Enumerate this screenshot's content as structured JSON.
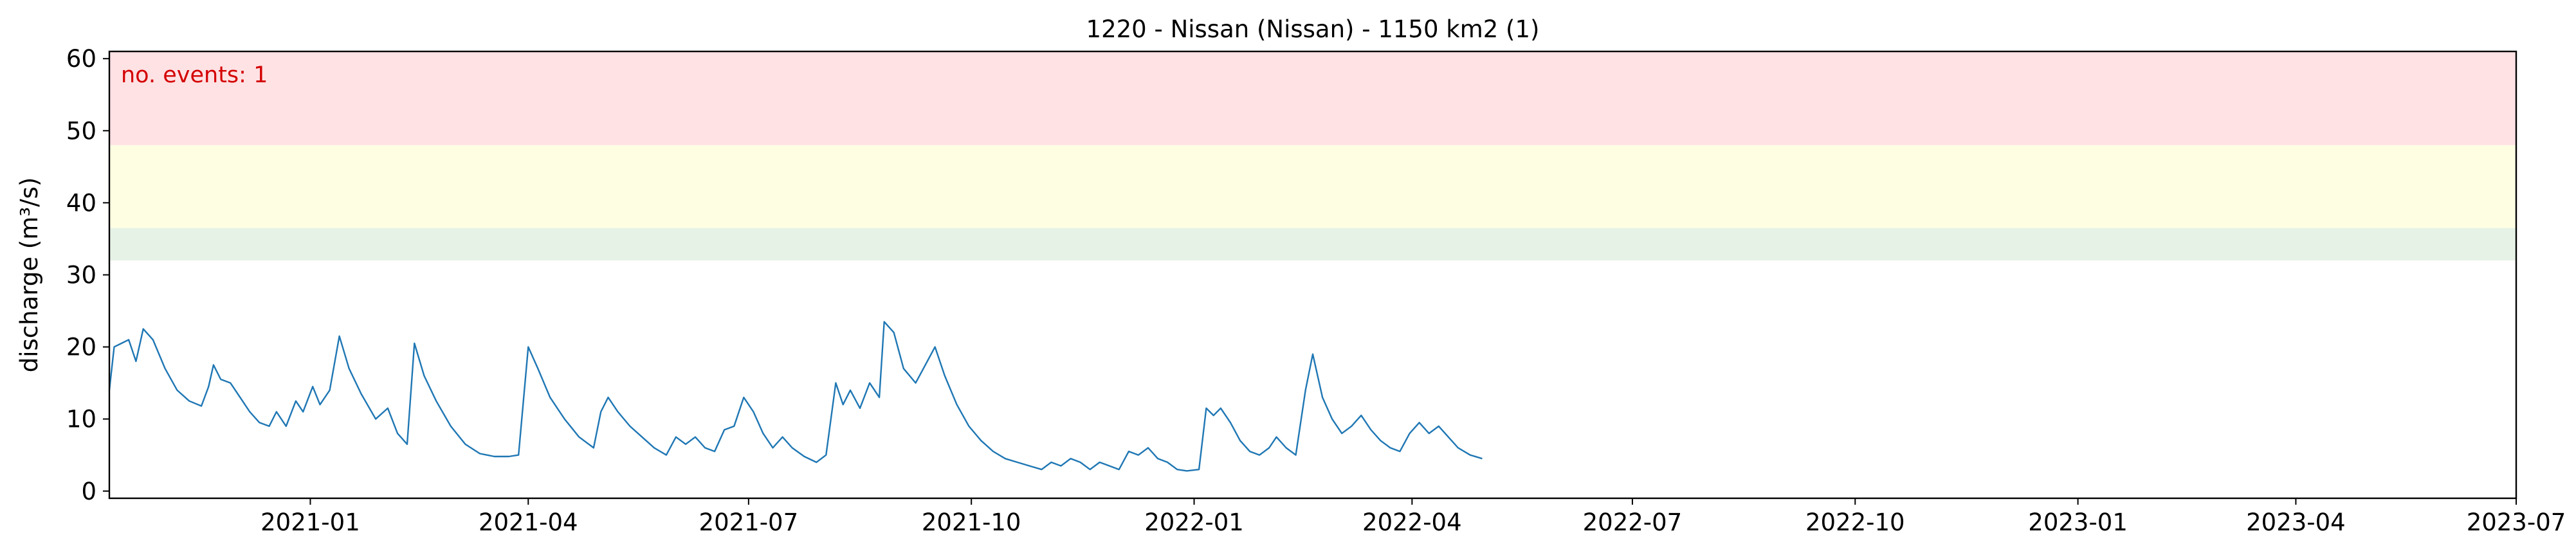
{
  "chart_data": {
    "type": "line",
    "title": "1220 - Nissan (Nissan) - 1150 km2 (1)",
    "xlabel": "",
    "ylabel": "discharge (m³/s)",
    "xlim": [
      "2020-10-10",
      "2023-07-01"
    ],
    "ylim": [
      -1,
      61
    ],
    "x_ticks": [
      "2021-01",
      "2021-04",
      "2021-07",
      "2021-10",
      "2022-01",
      "2022-04",
      "2022-07",
      "2022-10",
      "2023-01",
      "2023-04",
      "2023-07"
    ],
    "y_ticks": [
      0,
      10,
      20,
      30,
      40,
      50,
      60
    ],
    "grid": false,
    "threshold_bands": [
      {
        "lower": 32,
        "upper": 36.5,
        "color": "#e6f2e6"
      },
      {
        "lower": 36.5,
        "upper": 48,
        "color": "#fefee2"
      },
      {
        "lower": 48,
        "upper": 61,
        "color": "#ffe2e4"
      }
    ],
    "annotation": {
      "text": "no. events: 1",
      "color": "#d40000"
    },
    "series": [
      {
        "color": "#1f77b4",
        "points": [
          [
            "2020-10-10",
            14
          ],
          [
            "2020-10-12",
            20
          ],
          [
            "2020-10-15",
            20.5
          ],
          [
            "2020-10-18",
            21
          ],
          [
            "2020-10-21",
            18
          ],
          [
            "2020-10-24",
            22.5
          ],
          [
            "2020-10-28",
            21
          ],
          [
            "2020-11-02",
            17
          ],
          [
            "2020-11-07",
            14
          ],
          [
            "2020-11-12",
            12.5
          ],
          [
            "2020-11-17",
            11.8
          ],
          [
            "2020-11-20",
            14.5
          ],
          [
            "2020-11-22",
            17.5
          ],
          [
            "2020-11-25",
            15.5
          ],
          [
            "2020-11-29",
            15
          ],
          [
            "2020-12-03",
            13
          ],
          [
            "2020-12-07",
            11
          ],
          [
            "2020-12-11",
            9.5
          ],
          [
            "2020-12-15",
            9
          ],
          [
            "2020-12-18",
            11
          ],
          [
            "2020-12-22",
            9
          ],
          [
            "2020-12-26",
            12.5
          ],
          [
            "2020-12-29",
            11
          ],
          [
            "2021-01-02",
            14.5
          ],
          [
            "2021-01-05",
            12
          ],
          [
            "2021-01-09",
            14
          ],
          [
            "2021-01-13",
            21.5
          ],
          [
            "2021-01-17",
            17
          ],
          [
            "2021-01-22",
            13.5
          ],
          [
            "2021-01-28",
            10
          ],
          [
            "2021-02-02",
            11.5
          ],
          [
            "2021-02-06",
            8
          ],
          [
            "2021-02-10",
            6.5
          ],
          [
            "2021-02-13",
            20.5
          ],
          [
            "2021-02-17",
            16
          ],
          [
            "2021-02-22",
            12.5
          ],
          [
            "2021-02-28",
            9
          ],
          [
            "2021-03-06",
            6.5
          ],
          [
            "2021-03-12",
            5.2
          ],
          [
            "2021-03-18",
            4.8
          ],
          [
            "2021-03-24",
            4.8
          ],
          [
            "2021-03-28",
            5
          ],
          [
            "2021-04-01",
            20
          ],
          [
            "2021-04-05",
            17
          ],
          [
            "2021-04-10",
            13
          ],
          [
            "2021-04-16",
            10
          ],
          [
            "2021-04-22",
            7.5
          ],
          [
            "2021-04-28",
            6
          ],
          [
            "2021-05-01",
            11
          ],
          [
            "2021-05-04",
            13
          ],
          [
            "2021-05-08",
            11
          ],
          [
            "2021-05-13",
            9
          ],
          [
            "2021-05-18",
            7.5
          ],
          [
            "2021-05-23",
            6
          ],
          [
            "2021-05-28",
            5
          ],
          [
            "2021-06-01",
            7.5
          ],
          [
            "2021-06-05",
            6.5
          ],
          [
            "2021-06-09",
            7.5
          ],
          [
            "2021-06-13",
            6
          ],
          [
            "2021-06-17",
            5.5
          ],
          [
            "2021-06-21",
            8.5
          ],
          [
            "2021-06-25",
            9
          ],
          [
            "2021-06-29",
            13
          ],
          [
            "2021-07-03",
            11
          ],
          [
            "2021-07-07",
            8
          ],
          [
            "2021-07-11",
            6
          ],
          [
            "2021-07-15",
            7.5
          ],
          [
            "2021-07-19",
            6
          ],
          [
            "2021-07-24",
            4.8
          ],
          [
            "2021-07-29",
            4
          ],
          [
            "2021-08-02",
            5
          ],
          [
            "2021-08-06",
            15
          ],
          [
            "2021-08-09",
            12
          ],
          [
            "2021-08-12",
            14
          ],
          [
            "2021-08-16",
            11.5
          ],
          [
            "2021-08-20",
            15
          ],
          [
            "2021-08-24",
            13
          ],
          [
            "2021-08-26",
            23.5
          ],
          [
            "2021-08-30",
            22
          ],
          [
            "2021-09-03",
            17
          ],
          [
            "2021-09-08",
            15
          ],
          [
            "2021-09-12",
            17.5
          ],
          [
            "2021-09-16",
            20
          ],
          [
            "2021-09-20",
            16
          ],
          [
            "2021-09-25",
            12
          ],
          [
            "2021-09-30",
            9
          ],
          [
            "2021-10-05",
            7
          ],
          [
            "2021-10-10",
            5.5
          ],
          [
            "2021-10-15",
            4.5
          ],
          [
            "2021-10-20",
            4
          ],
          [
            "2021-10-25",
            3.5
          ],
          [
            "2021-10-30",
            3
          ],
          [
            "2021-11-03",
            4
          ],
          [
            "2021-11-07",
            3.5
          ],
          [
            "2021-11-11",
            4.5
          ],
          [
            "2021-11-15",
            4
          ],
          [
            "2021-11-19",
            3
          ],
          [
            "2021-11-23",
            4
          ],
          [
            "2021-11-27",
            3.5
          ],
          [
            "2021-12-01",
            3
          ],
          [
            "2021-12-05",
            5.5
          ],
          [
            "2021-12-09",
            5
          ],
          [
            "2021-12-13",
            6
          ],
          [
            "2021-12-17",
            4.5
          ],
          [
            "2021-12-21",
            4
          ],
          [
            "2021-12-25",
            3
          ],
          [
            "2021-12-29",
            2.8
          ],
          [
            "2022-01-03",
            3
          ],
          [
            "2022-01-06",
            11.5
          ],
          [
            "2022-01-09",
            10.5
          ],
          [
            "2022-01-12",
            11.5
          ],
          [
            "2022-01-16",
            9.5
          ],
          [
            "2022-01-20",
            7
          ],
          [
            "2022-01-24",
            5.5
          ],
          [
            "2022-01-28",
            5
          ],
          [
            "2022-02-01",
            6
          ],
          [
            "2022-02-04",
            7.5
          ],
          [
            "2022-02-08",
            6
          ],
          [
            "2022-02-12",
            5
          ],
          [
            "2022-02-16",
            14
          ],
          [
            "2022-02-19",
            19
          ],
          [
            "2022-02-23",
            13
          ],
          [
            "2022-02-27",
            10
          ],
          [
            "2022-03-03",
            8
          ],
          [
            "2022-03-07",
            9
          ],
          [
            "2022-03-11",
            10.5
          ],
          [
            "2022-03-15",
            8.5
          ],
          [
            "2022-03-19",
            7
          ],
          [
            "2022-03-23",
            6
          ],
          [
            "2022-03-27",
            5.5
          ],
          [
            "2022-03-31",
            8
          ],
          [
            "2022-04-04",
            9.5
          ],
          [
            "2022-04-08",
            8
          ],
          [
            "2022-04-12",
            9
          ],
          [
            "2022-04-16",
            7.5
          ],
          [
            "2022-04-20",
            6
          ],
          [
            "2022-04-25",
            5
          ],
          [
            "2022-04-30",
            4.5
          ]
        ]
      }
    ]
  }
}
